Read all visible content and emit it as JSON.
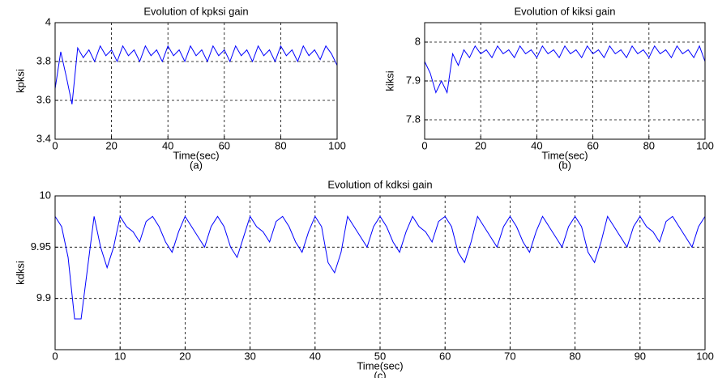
{
  "chart_data": [
    {
      "type": "line",
      "title": "Evolution of kpksi gain",
      "xlabel": "Time(sec)",
      "ylabel": "kpksi",
      "caption": "(a)",
      "x": [
        0,
        2,
        4,
        6,
        8,
        10,
        12,
        14,
        16,
        18,
        20,
        22,
        24,
        26,
        28,
        30,
        32,
        34,
        36,
        38,
        40,
        42,
        44,
        46,
        48,
        50,
        52,
        54,
        56,
        58,
        60,
        62,
        64,
        66,
        68,
        70,
        72,
        74,
        76,
        78,
        80,
        82,
        84,
        86,
        88,
        90,
        92,
        94,
        96,
        98,
        100
      ],
      "series": [
        {
          "name": "kpksi",
          "color": "#0000ff",
          "values": [
            3.66,
            3.85,
            3.72,
            3.58,
            3.87,
            3.82,
            3.86,
            3.8,
            3.88,
            3.83,
            3.86,
            3.8,
            3.88,
            3.83,
            3.86,
            3.8,
            3.88,
            3.83,
            3.86,
            3.8,
            3.88,
            3.83,
            3.86,
            3.8,
            3.88,
            3.83,
            3.86,
            3.8,
            3.88,
            3.83,
            3.86,
            3.8,
            3.88,
            3.83,
            3.86,
            3.8,
            3.88,
            3.83,
            3.86,
            3.8,
            3.88,
            3.83,
            3.86,
            3.8,
            3.88,
            3.83,
            3.86,
            3.81,
            3.88,
            3.84,
            3.78
          ]
        }
      ],
      "xlim": [
        0,
        100
      ],
      "xticks": [
        0,
        20,
        40,
        60,
        80,
        100
      ],
      "ylim": [
        3.4,
        4
      ],
      "yticks": [
        3.4,
        3.6,
        3.8,
        4
      ],
      "grid": true
    },
    {
      "type": "line",
      "title": "Evolution of kiksi gain",
      "xlabel": "Time(sec)",
      "ylabel": "kiksi",
      "caption": "(b)",
      "x": [
        0,
        2,
        4,
        6,
        8,
        10,
        12,
        14,
        16,
        18,
        20,
        22,
        24,
        26,
        28,
        30,
        32,
        34,
        36,
        38,
        40,
        42,
        44,
        46,
        48,
        50,
        52,
        54,
        56,
        58,
        60,
        62,
        64,
        66,
        68,
        70,
        72,
        74,
        76,
        78,
        80,
        82,
        84,
        86,
        88,
        90,
        92,
        94,
        96,
        98,
        100
      ],
      "series": [
        {
          "name": "kiksi",
          "color": "#0000ff",
          "values": [
            7.95,
            7.92,
            7.87,
            7.9,
            7.87,
            7.97,
            7.94,
            7.98,
            7.96,
            7.99,
            7.97,
            7.98,
            7.96,
            7.99,
            7.97,
            7.98,
            7.96,
            7.99,
            7.97,
            7.98,
            7.96,
            7.99,
            7.97,
            7.98,
            7.96,
            7.99,
            7.97,
            7.98,
            7.96,
            7.99,
            7.97,
            7.98,
            7.96,
            7.99,
            7.97,
            7.98,
            7.96,
            7.99,
            7.97,
            7.98,
            7.96,
            7.99,
            7.97,
            7.98,
            7.96,
            7.99,
            7.97,
            7.98,
            7.96,
            7.99,
            7.95
          ]
        }
      ],
      "xlim": [
        0,
        100
      ],
      "xticks": [
        0,
        20,
        40,
        60,
        80,
        100
      ],
      "ylim": [
        7.75,
        8.05
      ],
      "yticks": [
        7.8,
        7.9,
        8
      ],
      "grid": true
    },
    {
      "type": "line",
      "title": "Evolution of kdksi gain",
      "xlabel": "Time(sec)",
      "ylabel": "kdksi",
      "caption": "(c)",
      "x": [
        0,
        1,
        2,
        3,
        4,
        5,
        6,
        7,
        8,
        9,
        10,
        11,
        12,
        13,
        14,
        15,
        16,
        17,
        18,
        19,
        20,
        21,
        22,
        23,
        24,
        25,
        26,
        27,
        28,
        29,
        30,
        31,
        32,
        33,
        34,
        35,
        36,
        37,
        38,
        39,
        40,
        41,
        42,
        43,
        44,
        45,
        46,
        47,
        48,
        49,
        50,
        51,
        52,
        53,
        54,
        55,
        56,
        57,
        58,
        59,
        60,
        61,
        62,
        63,
        64,
        65,
        66,
        67,
        68,
        69,
        70,
        71,
        72,
        73,
        74,
        75,
        76,
        77,
        78,
        79,
        80,
        81,
        82,
        83,
        84,
        85,
        86,
        87,
        88,
        89,
        90,
        91,
        92,
        93,
        94,
        95,
        96,
        97,
        98,
        99,
        100
      ],
      "series": [
        {
          "name": "kdksi",
          "color": "#0000ff",
          "values": [
            9.98,
            9.97,
            9.94,
            9.88,
            9.88,
            9.93,
            9.98,
            9.95,
            9.93,
            9.95,
            9.98,
            9.97,
            9.965,
            9.955,
            9.975,
            9.98,
            9.97,
            9.955,
            9.945,
            9.965,
            9.98,
            9.97,
            9.96,
            9.95,
            9.97,
            9.98,
            9.97,
            9.95,
            9.94,
            9.96,
            9.98,
            9.97,
            9.965,
            9.955,
            9.975,
            9.98,
            9.97,
            9.955,
            9.945,
            9.965,
            9.98,
            9.97,
            9.935,
            9.925,
            9.945,
            9.98,
            9.97,
            9.96,
            9.95,
            9.97,
            9.98,
            9.97,
            9.955,
            9.945,
            9.965,
            9.98,
            9.97,
            9.965,
            9.955,
            9.975,
            9.98,
            9.97,
            9.945,
            9.935,
            9.955,
            9.98,
            9.97,
            9.96,
            9.95,
            9.97,
            9.98,
            9.97,
            9.955,
            9.945,
            9.965,
            9.98,
            9.97,
            9.96,
            9.95,
            9.97,
            9.98,
            9.97,
            9.945,
            9.935,
            9.955,
            9.98,
            9.97,
            9.96,
            9.95,
            9.97,
            9.98,
            9.97,
            9.965,
            9.955,
            9.975,
            9.98,
            9.97,
            9.96,
            9.95,
            9.97,
            9.98
          ]
        }
      ],
      "xlim": [
        0,
        100
      ],
      "xticks": [
        0,
        10,
        20,
        30,
        40,
        50,
        60,
        70,
        80,
        90,
        100
      ],
      "ylim": [
        9.85,
        10
      ],
      "yticks": [
        9.9,
        9.95,
        10
      ],
      "grid": true
    }
  ]
}
